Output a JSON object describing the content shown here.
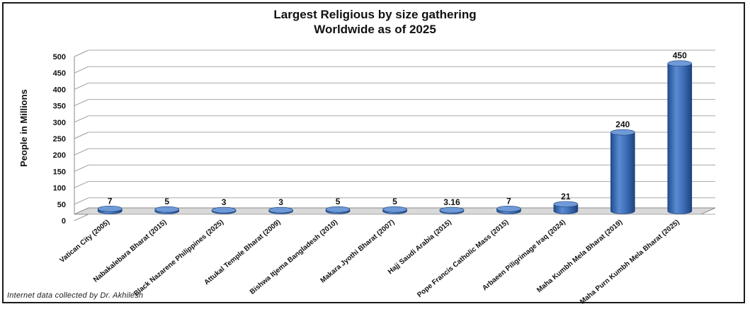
{
  "chart_data": {
    "type": "bar",
    "title": "Largest  Religious by size gathering\nWorldwide as of 2025",
    "ylabel": "People in Millions",
    "xlabel": "",
    "ylim": [
      0,
      500
    ],
    "yticks": [
      0,
      50,
      100,
      150,
      200,
      250,
      300,
      350,
      400,
      450,
      500
    ],
    "grid": true,
    "categories": [
      "Vatican City (2005)",
      "Nabakalebara Bharat (2015)",
      "Black Nazarene Philippines  (2025)",
      "Attukal Temple Bharat (2009)",
      "Bishwa Itjema Bangladesh (2010)",
      "Makara Jyothi Bharat (2007)",
      "Hajj Saudi Arabia (2015)",
      "Pope Francis Catholic  Mass (2015)",
      "Arbaeen Piligrimage Iraq (2024)",
      "Maha Kumbh Mela Bharat (2019)",
      "Maha Purn Kumbh Mela Bharat (2025)"
    ],
    "values": [
      7,
      5,
      3,
      3,
      5,
      5,
      3.16,
      7,
      21,
      240,
      450
    ],
    "data_labels": [
      "7",
      "5",
      "3",
      "3",
      "5",
      "5",
      "3.16",
      "7",
      "21",
      "240",
      "450"
    ],
    "bar_color": "#3f6fb5"
  },
  "footer": {
    "credit": "Internet data collected by Dr. Akhilesh"
  }
}
